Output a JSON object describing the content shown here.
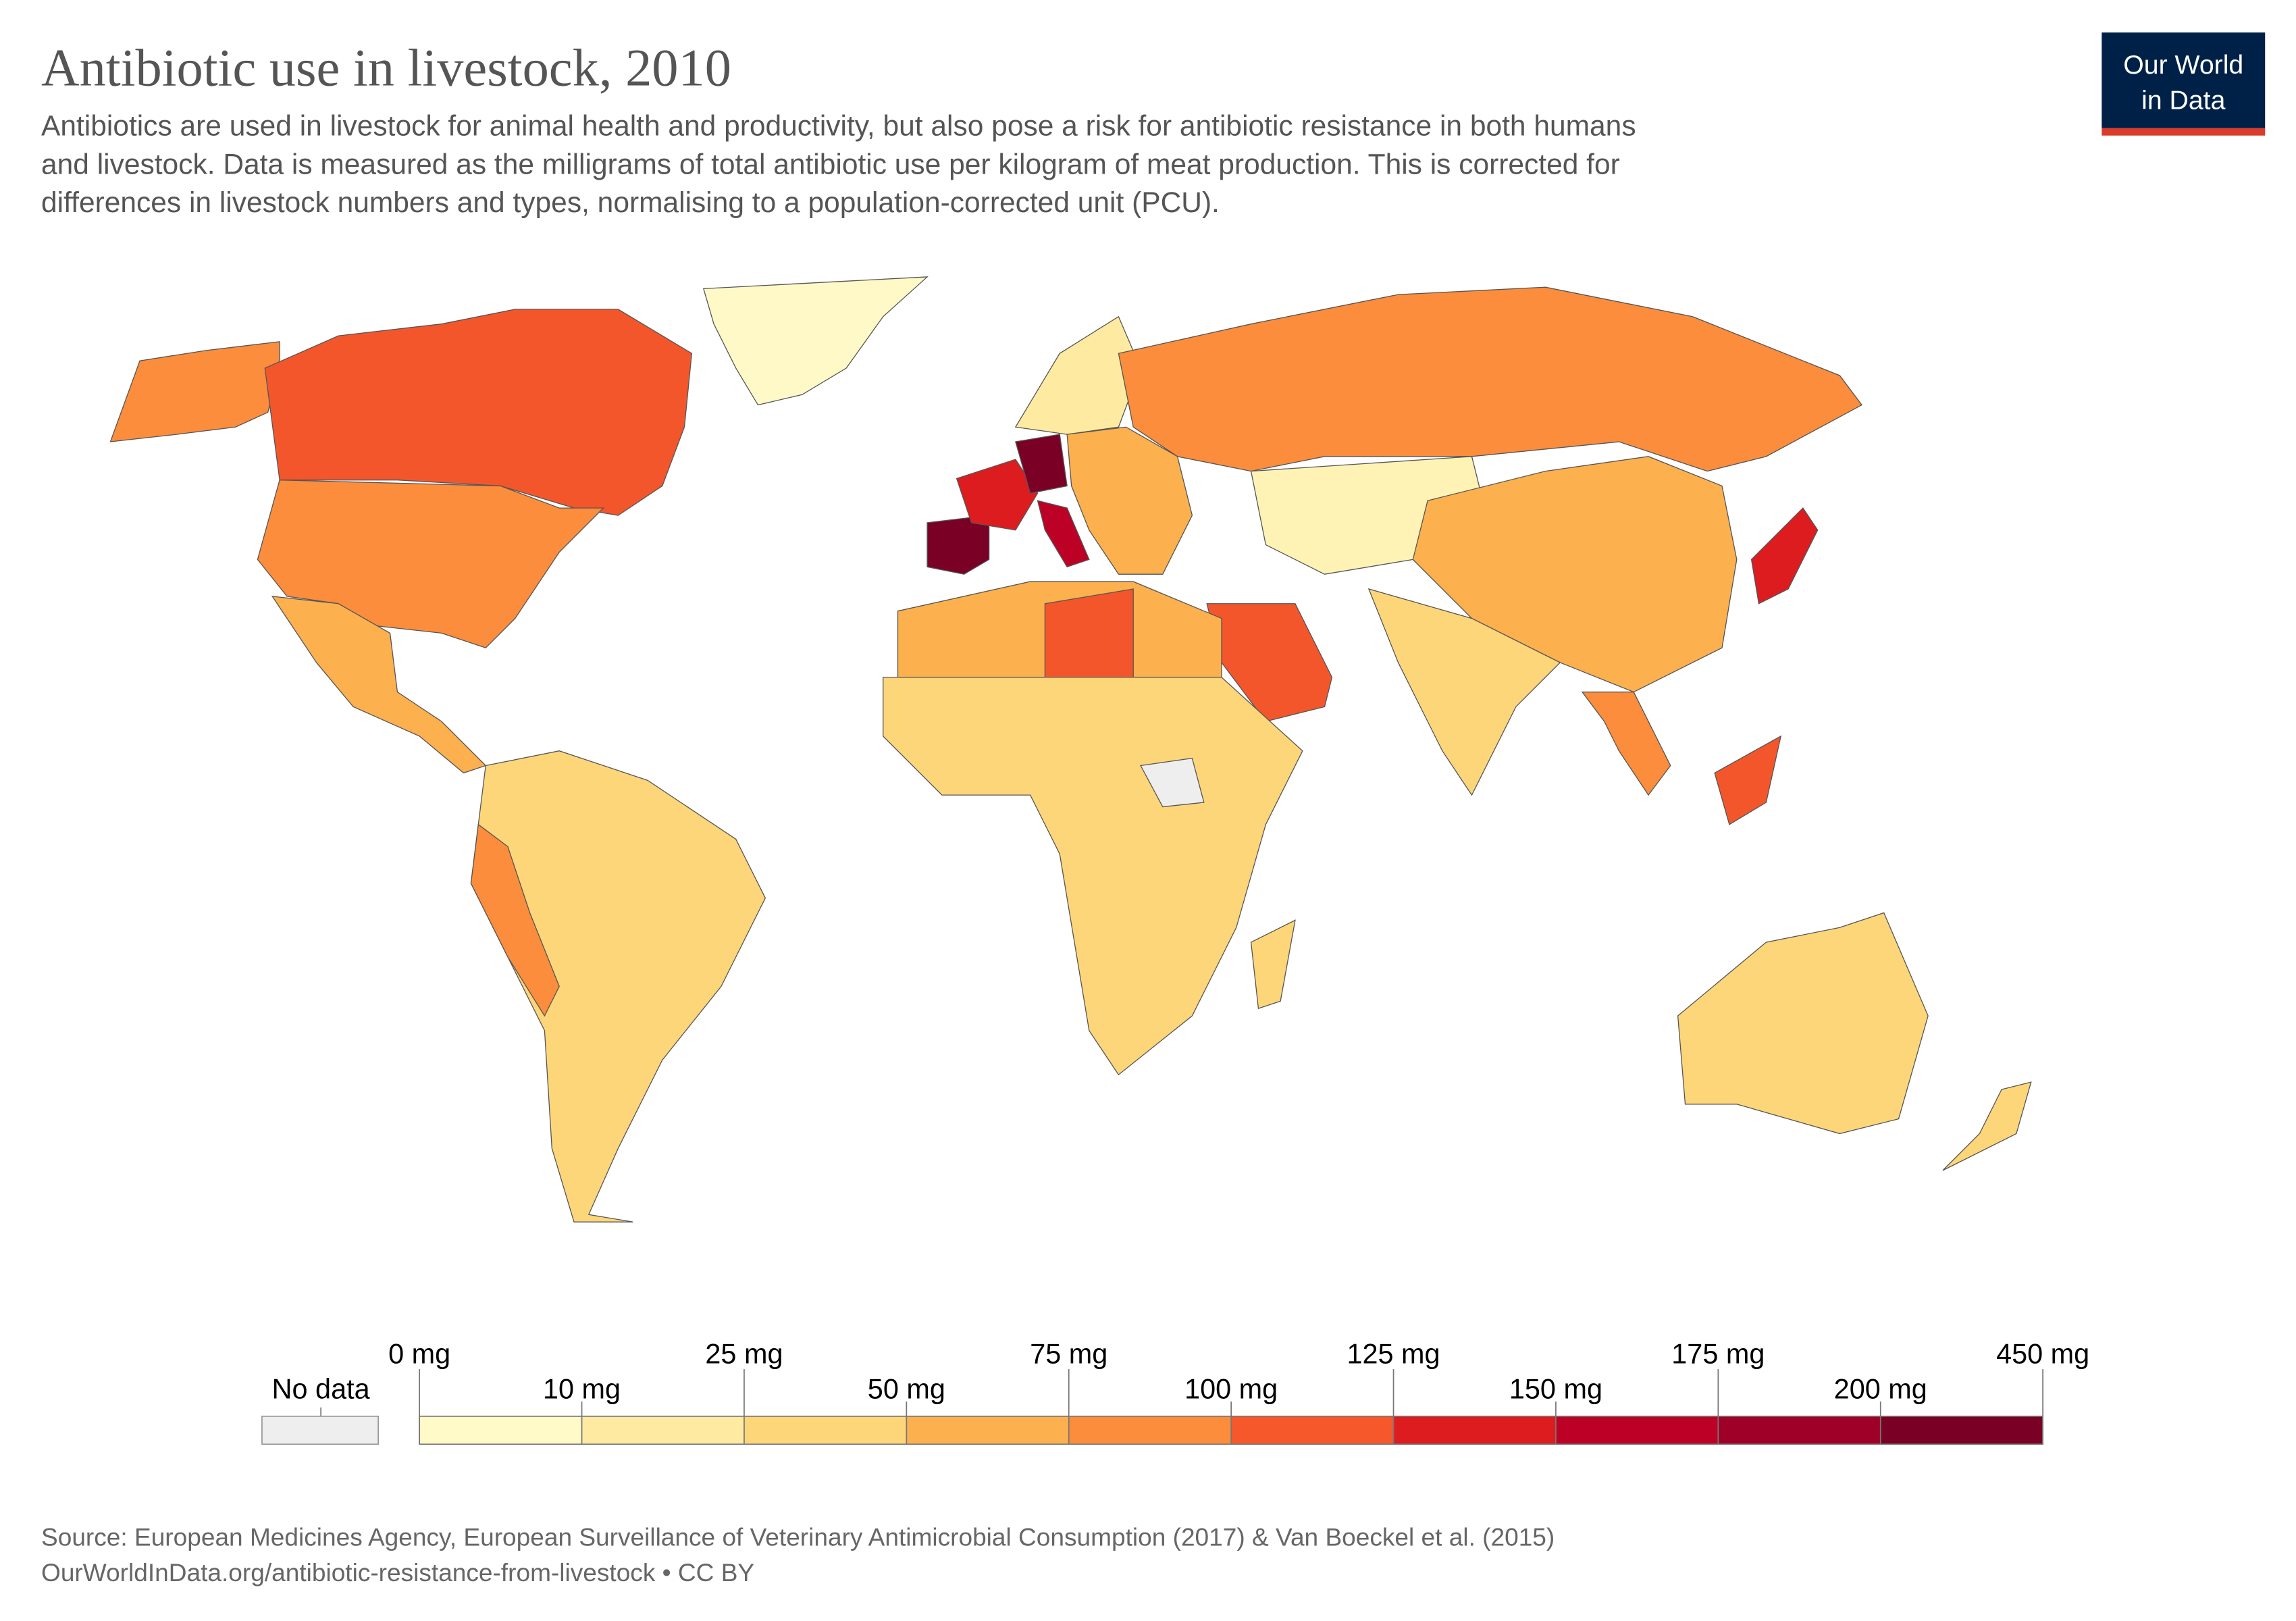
{
  "title": "Antibiotic use in livestock, 2010",
  "subtitle": [
    "Antibiotics are used in livestock for animal health and productivity, but also pose a risk for antibiotic resistance in both humans",
    "and livestock. Data is measured as the milligrams of total antibiotic use per kilogram of meat production. This is corrected for",
    "differences in livestock numbers and types, normalising to a population-corrected unit (PCU)."
  ],
  "logo": [
    "Our World",
    "in Data"
  ],
  "legend": {
    "no_data": "No data",
    "no_data_color": "#eeeeee",
    "ticks": [
      {
        "value": 0,
        "label": "0 mg"
      },
      {
        "value": 10,
        "label": "10 mg"
      },
      {
        "value": 25,
        "label": "25 mg"
      },
      {
        "value": 50,
        "label": "50 mg"
      },
      {
        "value": 75,
        "label": "75 mg"
      },
      {
        "value": 100,
        "label": "100 mg"
      },
      {
        "value": 125,
        "label": "125 mg"
      },
      {
        "value": 150,
        "label": "150 mg"
      },
      {
        "value": 175,
        "label": "175 mg"
      },
      {
        "value": 200,
        "label": "200 mg"
      },
      {
        "value": 450,
        "label": "450 mg"
      }
    ],
    "colors": [
      "#fffac8",
      "#feeaa0",
      "#fdd67a",
      "#fcb04e",
      "#fb8d3c",
      "#f6572b",
      "#dd1c1f",
      "#bd0026",
      "#9e0028",
      "#7a0026"
    ]
  },
  "source": [
    "Source: European Medicines Agency, European Surveillance of Veterinary Antimicrobial Consumption (2017) & Van Boeckel et al. (2015)",
    "OurWorldInData.org/antibiotic-resistance-from-livestock • CC BY"
  ]
}
